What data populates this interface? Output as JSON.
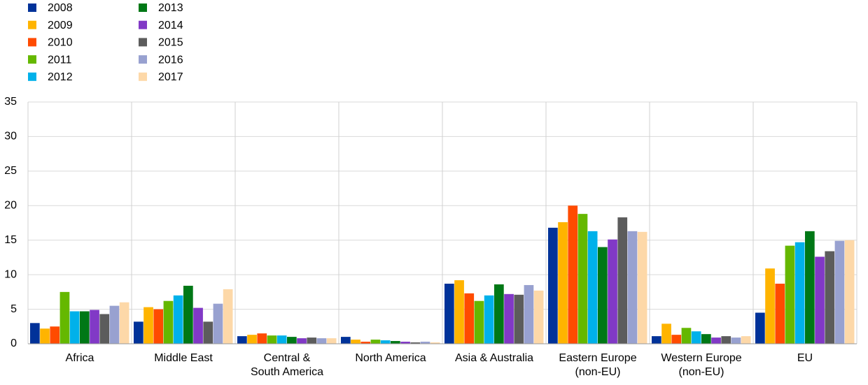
{
  "chart_data": {
    "type": "bar",
    "categories": [
      "Africa",
      "Middle East",
      "Central &\nSouth America",
      "North America",
      "Asia & Australia",
      "Eastern Europe\n(non-EU)",
      "Western Europe\n(non-EU)",
      "EU"
    ],
    "series": [
      {
        "name": "2008",
        "color": "#003299",
        "values": [
          3.0,
          3.2,
          1.1,
          1.0,
          8.7,
          16.8,
          1.1,
          4.5
        ]
      },
      {
        "name": "2009",
        "color": "#ffb400",
        "values": [
          2.2,
          5.3,
          1.3,
          0.6,
          9.2,
          17.6,
          2.9,
          10.9
        ]
      },
      {
        "name": "2010",
        "color": "#ff4b00",
        "values": [
          2.5,
          5.0,
          1.5,
          0.3,
          7.3,
          20.0,
          1.3,
          8.7
        ]
      },
      {
        "name": "2011",
        "color": "#65b800",
        "values": [
          7.5,
          6.2,
          1.2,
          0.6,
          6.2,
          18.8,
          2.3,
          14.2
        ]
      },
      {
        "name": "2012",
        "color": "#00b1ea",
        "values": [
          4.7,
          7.0,
          1.2,
          0.5,
          7.0,
          16.3,
          1.8,
          14.7
        ]
      },
      {
        "name": "2013",
        "color": "#007816",
        "values": [
          4.7,
          8.4,
          1.0,
          0.4,
          8.6,
          14.0,
          1.4,
          16.3
        ]
      },
      {
        "name": "2014",
        "color": "#8139c6",
        "values": [
          4.9,
          5.2,
          0.8,
          0.3,
          7.2,
          15.1,
          0.9,
          12.6
        ]
      },
      {
        "name": "2015",
        "color": "#5c5c5c",
        "values": [
          4.3,
          3.2,
          0.9,
          0.2,
          7.1,
          18.3,
          1.1,
          13.4
        ]
      },
      {
        "name": "2016",
        "color": "#98a1d0",
        "values": [
          5.5,
          5.8,
          0.8,
          0.3,
          8.5,
          16.3,
          0.9,
          14.9
        ]
      },
      {
        "name": "2017",
        "color": "#fdd8a8",
        "values": [
          6.0,
          7.9,
          0.8,
          0.2,
          7.7,
          16.2,
          1.1,
          15.0
        ]
      }
    ],
    "ylim": [
      0,
      35
    ],
    "yticks": [
      0,
      5,
      10,
      15,
      20,
      25,
      30,
      35
    ],
    "grid": true,
    "legend": "top-left"
  }
}
